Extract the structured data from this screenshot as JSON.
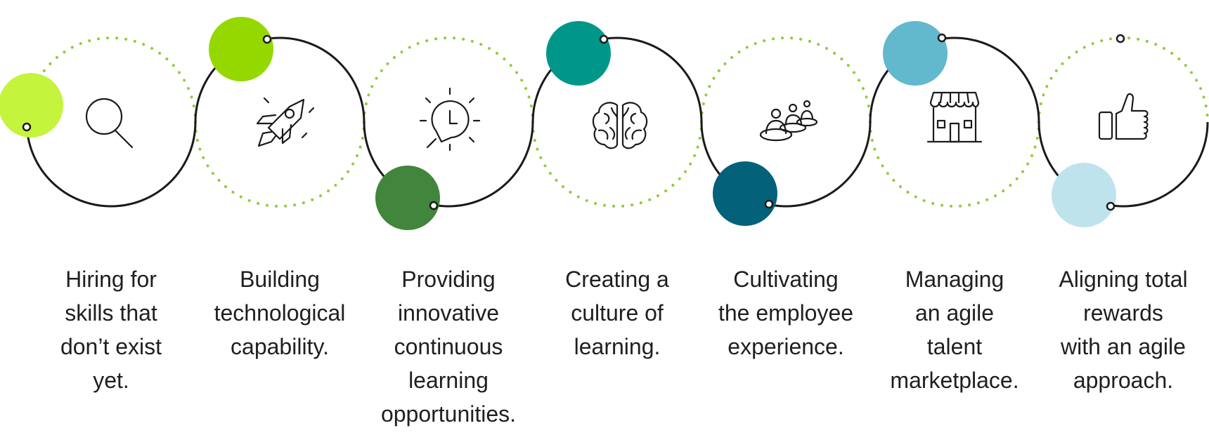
{
  "colors": {
    "line": "#1a1a1a",
    "dots": "#8fcc3a",
    "accents": [
      "#c5f43c",
      "#94d800",
      "#42853c",
      "#00978a",
      "#04617a",
      "#62b8cc",
      "#bfe3ec"
    ]
  },
  "steps": [
    {
      "label": "Hiring for\nskills that\ndon’t exist\nyet.",
      "icon": "magnifier-icon"
    },
    {
      "label": "Building\ntechnological\ncapability.",
      "icon": "rocket-icon"
    },
    {
      "label": "Providing\ninnovative\ncontinuous\nlearning\nopportunities.",
      "icon": "lightbulb-clock-icon"
    },
    {
      "label": "Creating a\nculture of\nlearning.",
      "icon": "brain-icon"
    },
    {
      "label": "Cultivating\nthe employee\nexperience.",
      "icon": "people-group-icon"
    },
    {
      "label": "Managing\nan agile\ntalent\nmarketplace.",
      "icon": "storefront-icon"
    },
    {
      "label": "Aligning total\nrewards\nwith an agile\napproach.",
      "icon": "thumbs-up-icon"
    }
  ]
}
